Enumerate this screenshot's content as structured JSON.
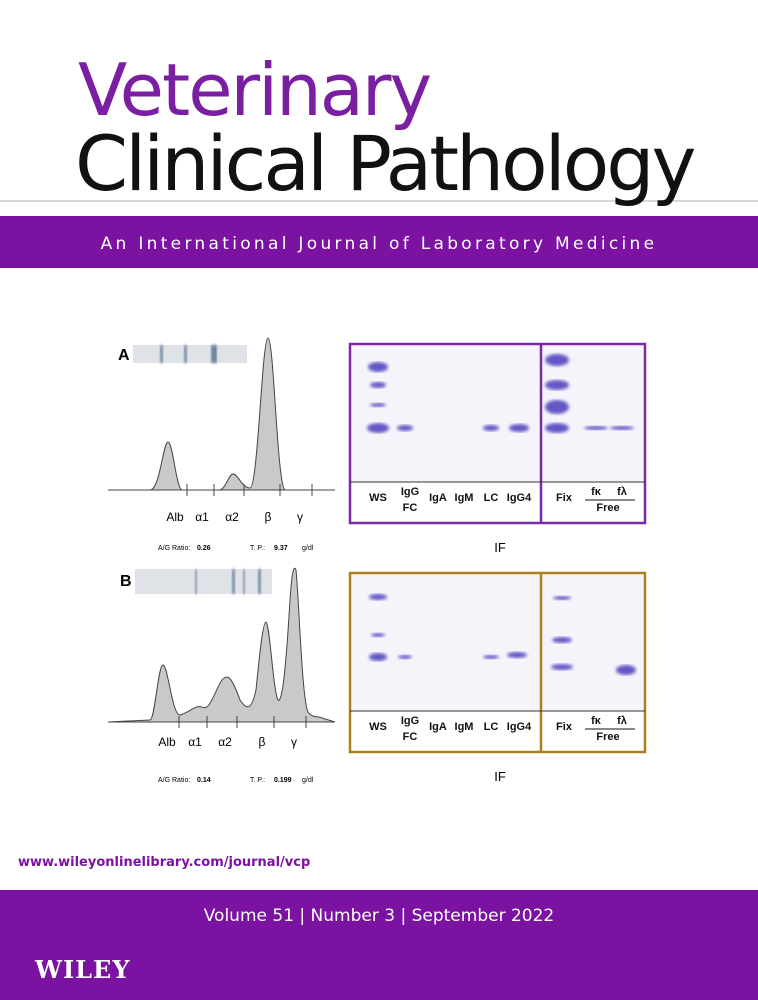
{
  "header": {
    "title_line1": "Veterinary",
    "title_line2": "Clinical Pathology",
    "subtitle": "An International Journal of Laboratory Medicine"
  },
  "figure": {
    "panels": [
      {
        "label": "A",
        "peaks": [
          "Alb",
          "α1",
          "α2",
          "β",
          "γ"
        ],
        "ag_ratio_label": "A/G Ratio:",
        "ag_ratio": "0.26",
        "tp_label": "T. P.:",
        "tp": "9.37",
        "tp_unit": "g/dl",
        "gel_left": [
          "WS",
          "IgG",
          "IgA",
          "IgM",
          "LC",
          "IgG4"
        ],
        "igg_sub": "FC",
        "gel_right": [
          "Fix",
          "fκ",
          "fλ"
        ],
        "free": "Free",
        "caption": "IF"
      },
      {
        "label": "B",
        "peaks": [
          "Alb",
          "α1",
          "α2",
          "β",
          "γ"
        ],
        "ag_ratio_label": "A/G Ratio:",
        "ag_ratio": "0.14",
        "tp_label": "T. P.:",
        "tp": "0.199",
        "tp_unit": "g/dl",
        "gel_left": [
          "WS",
          "IgG",
          "IgA",
          "IgM",
          "LC",
          "IgG4"
        ],
        "igg_sub": "FC",
        "gel_right": [
          "Fix",
          "fκ",
          "fλ"
        ],
        "free": "Free",
        "caption": "IF"
      }
    ]
  },
  "footer": {
    "url": "www.wileyonlinelibrary.com/journal/vcp",
    "issue": "Volume 51 | Number 3 | September 2022",
    "publisher": "WILEY"
  }
}
